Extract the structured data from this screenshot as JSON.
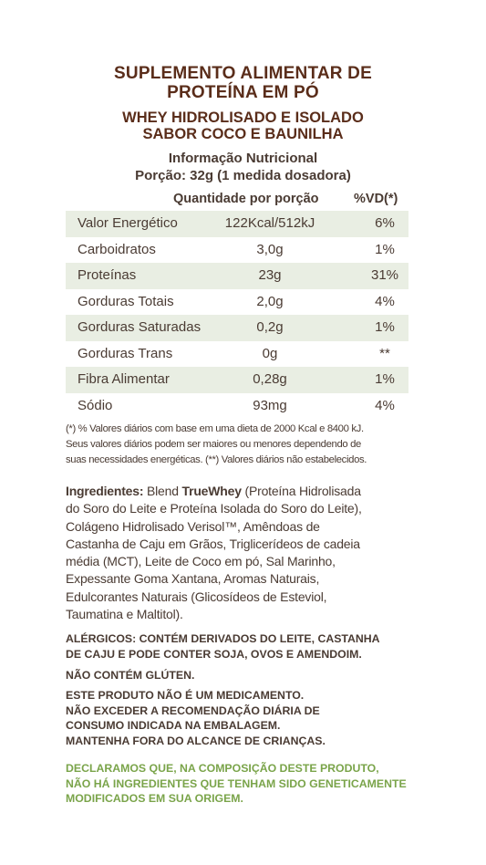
{
  "title": {
    "line1": "SUPLEMENTO ALIMENTAR DE",
    "line2": "PROTEÍNA EM PÓ"
  },
  "subtitle": {
    "line1": "WHEY HIDROLISADO E ISOLADO",
    "line2": "SABOR COCO E BAUNILHA"
  },
  "nutrition": {
    "heading": "Informação Nutricional",
    "portion": "Porção: 32g (1 medida dosadora)",
    "col_quantity": "Quantidade por porção",
    "col_vd": "%VD(*)",
    "rows": [
      {
        "name": "Valor Energético",
        "value": "122Kcal/512kJ",
        "vd": "6%"
      },
      {
        "name": "Carboidratos",
        "value": "3,0g",
        "vd": "1%"
      },
      {
        "name": "Proteínas",
        "value": "23g",
        "vd": "31%"
      },
      {
        "name": "Gorduras Totais",
        "value": "2,0g",
        "vd": "4%"
      },
      {
        "name": "Gorduras Saturadas",
        "value": "0,2g",
        "vd": "1%"
      },
      {
        "name": "Gorduras Trans",
        "value": "0g",
        "vd": "**"
      },
      {
        "name": "Fibra Alimentar",
        "value": "0,28g",
        "vd": "1%"
      },
      {
        "name": "Sódio",
        "value": "93mg",
        "vd": "4%"
      }
    ],
    "footnote": [
      "(*) % Valores diários com base em uma dieta de 2000 Kcal e 8400 kJ.",
      "Seus valores diários podem ser maiores ou menores dependendo de",
      "suas necessidades energéticas. (**) Valores diários não estabelecidos."
    ]
  },
  "ingredients": {
    "label": "Ingredientes:",
    "pre": " Blend ",
    "brand": "TrueWhey",
    "lines": [
      " (Proteína Hidrolisada",
      "do Soro do Leite e Proteína Isolada do Soro do Leite),",
      "Colágeno Hidrolisado Verisol™, Amêndoas de",
      "Castanha de Caju em Grãos, Triglicerídeos de cadeia",
      "média (MCT), Leite de Coco em pó, Sal Marinho,",
      "Expessante Goma Xantana, Aromas Naturais,",
      "Edulcorantes Naturais (Glicosídeos de Esteviol,",
      "Taumatina e Maltitol)."
    ]
  },
  "allergens": [
    "ALÉRGICOS: CONTÉM DERIVADOS DO LEITE, CASTANHA",
    "DE CAJU E PODE CONTER SOJA, OVOS E AMENDOIM."
  ],
  "gluten": "NÃO CONTÉM GLÚTEN.",
  "warnings": [
    "ESTE PRODUTO NÃO É UM MEDICAMENTO.",
    "NÃO EXCEDER A RECOMENDAÇÃO DIÁRIA DE",
    "CONSUMO INDICADA NA EMBALAGEM.",
    "MANTENHA FORA DO ALCANCE DE CRIANÇAS."
  ],
  "gmo": [
    "DECLARAMOS QUE, NA COMPOSIÇÃO DESTE PRODUTO,",
    "NÃO HÁ INGREDIENTES QUE TENHAM SIDO GENETICAMENTE",
    "MODIFICADOS EM SUA ORIGEM."
  ],
  "colors": {
    "title": "#5a2d1a",
    "text": "#4a3b33",
    "row_shade": "#e9eee3",
    "gmo": "#7aa44a"
  }
}
